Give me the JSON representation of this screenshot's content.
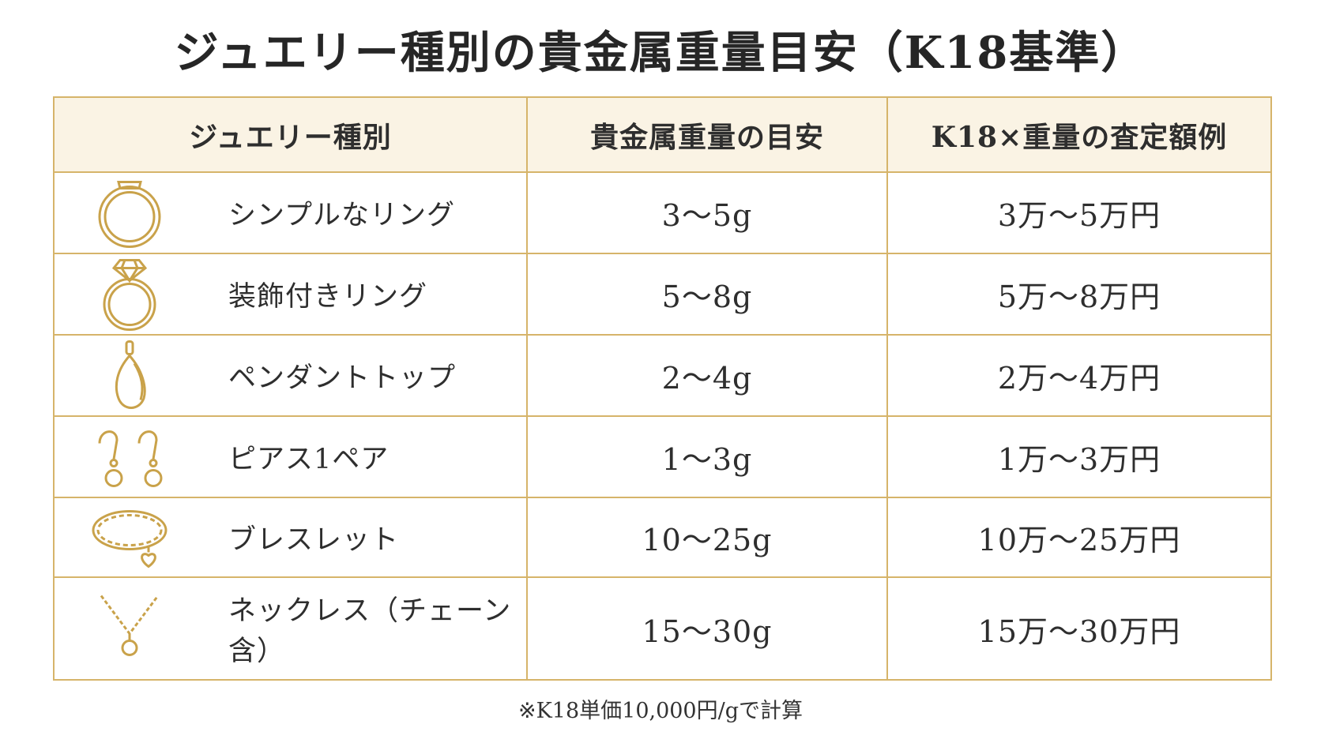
{
  "title": "ジュエリー種別の貴金属重量目安（K18基準）",
  "header": {
    "col1": "ジュエリー種別",
    "col2": "貴金属重量の目安",
    "col3": "K18×重量の査定額例"
  },
  "rows": [
    {
      "icon": "simple-ring-icon",
      "name": "シンプルなリング",
      "weight": "3〜5g",
      "price": "3万〜5万円"
    },
    {
      "icon": "diamond-ring-icon",
      "name": "装飾付きリング",
      "weight": "5〜8g",
      "price": "5万〜8万円"
    },
    {
      "icon": "pendant-icon",
      "name": "ペンダントトップ",
      "weight": "2〜4g",
      "price": "2万〜4万円"
    },
    {
      "icon": "earrings-icon",
      "name": "ピアス1ペア",
      "weight": "1〜3g",
      "price": "1万〜3万円"
    },
    {
      "icon": "bracelet-icon",
      "name": "ブレスレット",
      "weight": "10〜25g",
      "price": "10万〜25万円"
    },
    {
      "icon": "necklace-icon",
      "name": "ネックレス（チェーン含）",
      "weight": "15〜30g",
      "price": "15万〜30万円"
    }
  ],
  "note": "※K18単価10,000円/gで計算",
  "colors": {
    "gold": "#c9a24a",
    "border": "#d6b46a",
    "header_bg": "#faf3e4"
  }
}
